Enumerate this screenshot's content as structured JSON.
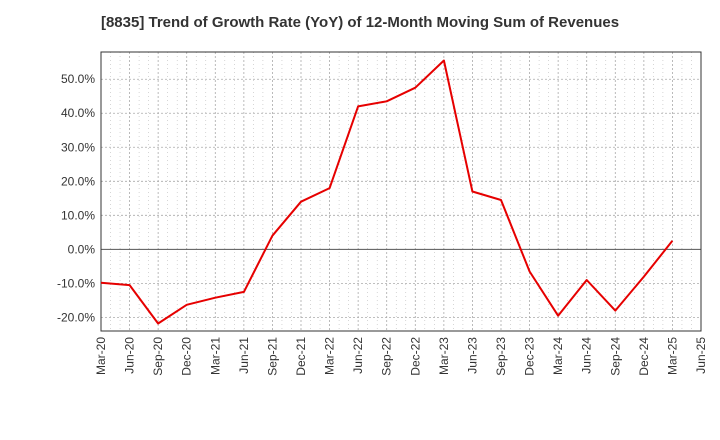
{
  "chart_data": {
    "type": "line",
    "title": "[8835]  Trend of Growth Rate (YoY) of 12-Month Moving Sum of Revenues",
    "xlabel": "",
    "ylabel": "",
    "x_ticks": [
      "Mar-20",
      "Jun-20",
      "Sep-20",
      "Dec-20",
      "Mar-21",
      "Jun-21",
      "Sep-21",
      "Dec-21",
      "Mar-22",
      "Jun-22",
      "Sep-22",
      "Dec-22",
      "Mar-23",
      "Jun-23",
      "Sep-23",
      "Dec-23",
      "Mar-24",
      "Jun-24",
      "Sep-24",
      "Dec-24",
      "Mar-25",
      "Jun-25"
    ],
    "y_ticks": [
      -20,
      -10,
      0,
      10,
      20,
      30,
      40,
      50
    ],
    "y_tick_labels": [
      "-20.0%",
      "-10.0%",
      "0.0%",
      "10.0%",
      "20.0%",
      "30.0%",
      "40.0%",
      "50.0%"
    ],
    "ylim": [
      -24,
      58
    ],
    "grid": true,
    "series": [
      {
        "color": "#e60000",
        "x": [
          "Mar-20",
          "Jun-20",
          "Sep-20",
          "Dec-20",
          "Mar-21",
          "Jun-21",
          "Sep-21",
          "Dec-21",
          "Mar-22",
          "Jun-22",
          "Sep-22",
          "Dec-22",
          "Mar-23",
          "Jun-23",
          "Sep-23",
          "Dec-23",
          "Mar-24",
          "Jun-24",
          "Sep-24",
          "Dec-24",
          "Mar-25"
        ],
        "values": [
          -9.8,
          -10.5,
          -21.8,
          -16.3,
          -14.2,
          -12.5,
          4.0,
          14.0,
          18.0,
          42.0,
          43.5,
          47.5,
          55.5,
          17.0,
          14.5,
          -6.5,
          -19.5,
          -9.0,
          -18.0,
          -8.0,
          2.5
        ]
      }
    ]
  }
}
